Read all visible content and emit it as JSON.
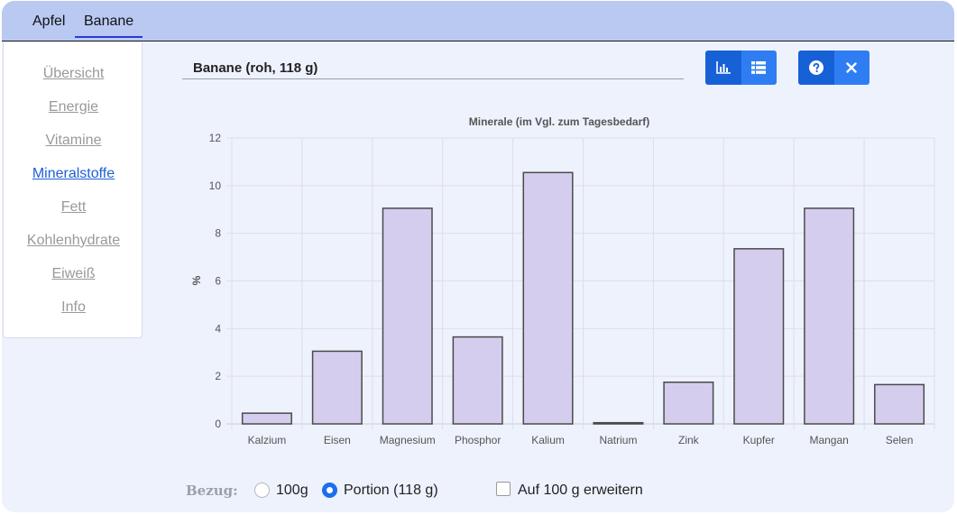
{
  "tabs": [
    {
      "label": "Apfel",
      "active": false
    },
    {
      "label": "Banane",
      "active": true
    }
  ],
  "sidebar": {
    "items": [
      {
        "label": "Übersicht",
        "active": false
      },
      {
        "label": "Energie",
        "active": false
      },
      {
        "label": "Vitamine",
        "active": false
      },
      {
        "label": "Mineralstoffe",
        "active": true
      },
      {
        "label": "Fett",
        "active": false
      },
      {
        "label": "Kohlenhydrate",
        "active": false
      },
      {
        "label": "Eiweiß",
        "active": false
      },
      {
        "label": "Info",
        "active": false
      }
    ]
  },
  "panel": {
    "title": "Banane (roh, 118 g)"
  },
  "toolbar": {
    "icons": [
      "bar-chart-icon",
      "list-icon",
      "help-icon",
      "close-icon"
    ],
    "colors": {
      "dark": "#1761d6",
      "light": "#2f7df2"
    }
  },
  "footer": {
    "bezug_label": "Bezug:",
    "option_100g": "100g",
    "option_portion": "Portion (118 g)",
    "selected": "portion",
    "extend_label": "Auf 100 g erweitern",
    "extend_checked": false
  },
  "chart_data": {
    "type": "bar",
    "title": "Minerale (im Vgl. zum Tagesbedarf)",
    "xlabel": "",
    "ylabel": "%",
    "ylim": [
      0,
      12
    ],
    "yticks": [
      0,
      2,
      4,
      6,
      8,
      10,
      12
    ],
    "grid": true,
    "categories": [
      "Kalzium",
      "Eisen",
      "Magnesium",
      "Phosphor",
      "Kalium",
      "Natrium",
      "Zink",
      "Kupfer",
      "Mangan",
      "Selen"
    ],
    "values": [
      0.45,
      3.05,
      9.05,
      3.65,
      10.55,
      0.05,
      1.75,
      7.35,
      9.05,
      1.65
    ],
    "bar_fill": "#d5cdee",
    "bar_stroke": "#4a4a4a"
  }
}
